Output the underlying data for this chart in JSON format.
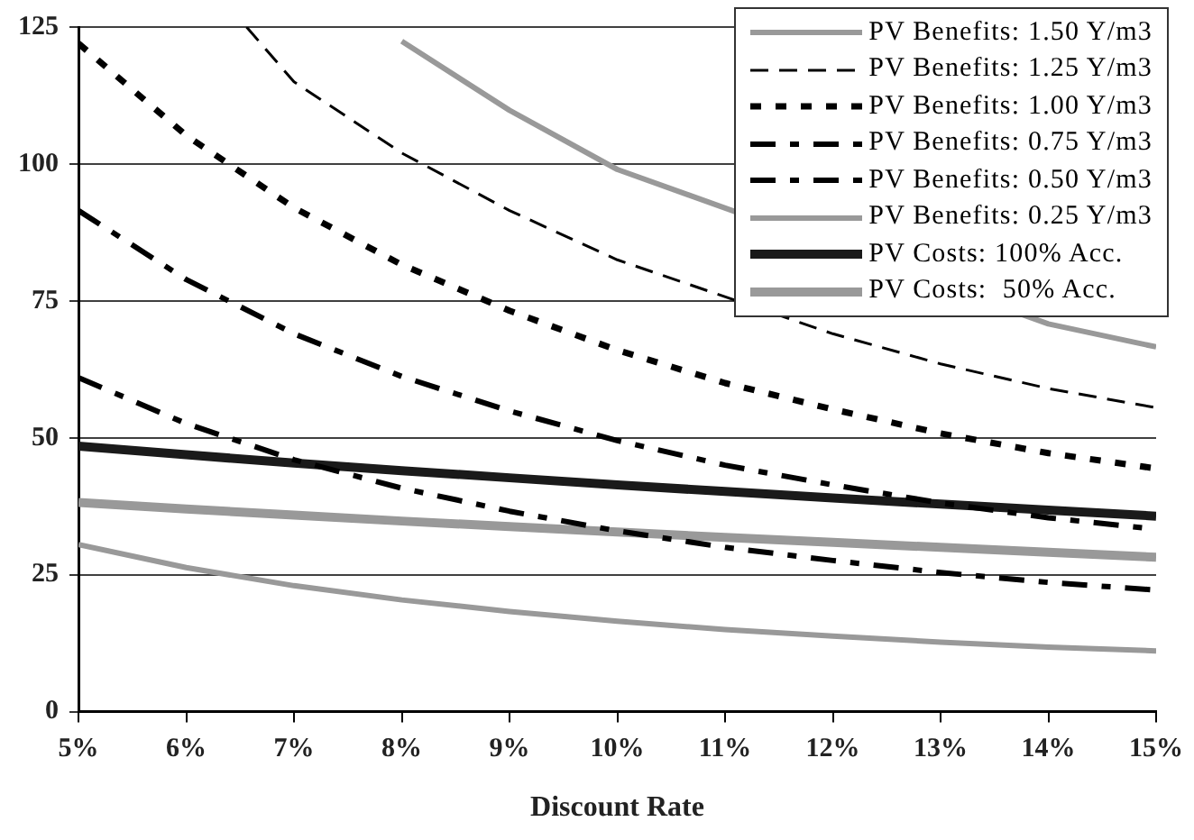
{
  "chart_data": {
    "type": "line",
    "xlabel": "Discount Rate",
    "x": [
      5,
      6,
      7,
      8,
      9,
      10,
      11,
      12,
      13,
      14,
      15
    ],
    "xlim": [
      5,
      15
    ],
    "xticks": [
      {
        "value": 5,
        "label": "5%"
      },
      {
        "value": 6,
        "label": "6%"
      },
      {
        "value": 7,
        "label": "7%"
      },
      {
        "value": 8,
        "label": "8%"
      },
      {
        "value": 9,
        "label": "9%"
      },
      {
        "value": 10,
        "label": "10%"
      },
      {
        "value": 11,
        "label": "11%"
      },
      {
        "value": 12,
        "label": "12%"
      },
      {
        "value": 13,
        "label": "13%"
      },
      {
        "value": 14,
        "label": "14%"
      },
      {
        "value": 15,
        "label": "15%"
      }
    ],
    "ylim": [
      0,
      125
    ],
    "yticks": [
      0,
      25,
      50,
      75,
      100,
      125
    ],
    "grid": "y",
    "legend": "top right",
    "series": [
      {
        "name": "PV Benefits: 1.50 Y/m3",
        "color": "#999999",
        "line_style": "solid",
        "x": [
          8,
          9,
          10,
          11,
          12,
          13,
          14,
          15
        ],
        "values": [
          122.4,
          109.8,
          99,
          null,
          null,
          null,
          70.8,
          66.6
        ]
      },
      {
        "name": "PV Benefits: 1.25 Y/m3",
        "color": "#000000",
        "line_style": "dashed",
        "x": [
          6.56,
          7,
          8,
          9,
          10,
          11,
          12,
          13,
          14,
          15
        ],
        "values": [
          125,
          115,
          102,
          91.5,
          82.5,
          null,
          69,
          63.5,
          59,
          55.5
        ]
      },
      {
        "name": "PV Benefits: 1.00 Y/m3",
        "color": "#000000",
        "line_style": "dotted",
        "values": [
          122,
          105.2,
          92,
          81.6,
          73.2,
          66,
          60,
          55.2,
          50.8,
          47.2,
          44.4
        ]
      },
      {
        "name": "PV Benefits: 0.75 Y/m3",
        "color": "#000000",
        "line_style": "dashdot",
        "values": [
          91.5,
          78.9,
          69,
          61.2,
          54.9,
          49.5,
          45,
          41.4,
          38.1,
          35.4,
          33.3
        ]
      },
      {
        "name": "PV Benefits: 0.50 Y/m3",
        "color": "#000000",
        "line_style": "dashdot",
        "values": [
          61,
          52.6,
          46,
          40.8,
          36.6,
          33,
          30,
          27.6,
          25.4,
          23.6,
          22.2
        ]
      },
      {
        "name": "PV Benefits: 0.25 Y/m3",
        "color": "#999999",
        "line_style": "solid",
        "values": [
          30.5,
          26.3,
          23,
          20.4,
          18.3,
          16.5,
          15,
          13.8,
          12.7,
          11.8,
          11.1
        ]
      },
      {
        "name": "PV Costs: 100% Acc.",
        "color": "#1a1a1a",
        "line_style": "solid",
        "values": [
          48.5,
          46.9,
          45.4,
          44,
          42.7,
          41.4,
          40.2,
          39,
          37.9,
          36.8,
          35.7
        ]
      },
      {
        "name": "PV Costs:  50% Acc.",
        "color": "#999999",
        "line_style": "solid",
        "values": [
          38.2,
          37,
          35.9,
          34.8,
          33.8,
          32.8,
          31.8,
          30.9,
          30,
          29.1,
          28.2
        ]
      }
    ]
  }
}
